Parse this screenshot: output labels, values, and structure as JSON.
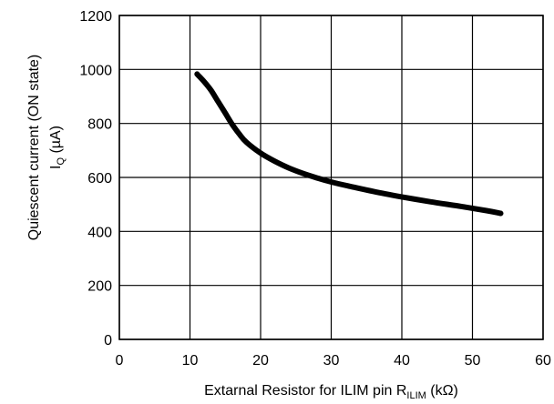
{
  "chart_data": {
    "type": "line",
    "title": "",
    "xlabel": {
      "main": "Extarnal Resistor for ILIM pin R",
      "sub": "ILIM",
      "unit": " (kΩ)"
    },
    "ylabel": {
      "line1": "Quiescent current (ON state)",
      "line2_main": "I",
      "line2_sub": "Q",
      "line2_unit": " (µA)"
    },
    "xlim": [
      0,
      60
    ],
    "ylim": [
      0,
      1200
    ],
    "x_ticks": [
      0,
      10,
      20,
      30,
      40,
      50,
      60
    ],
    "y_ticks": [
      0,
      200,
      400,
      600,
      800,
      1000,
      1200
    ],
    "grid": true,
    "legend": "none",
    "series": [
      {
        "color": "#000000",
        "x": [
          11,
          12,
          13,
          14,
          15,
          16,
          17,
          18,
          20,
          22,
          24,
          26,
          28,
          30,
          33,
          36,
          40,
          44,
          48,
          52,
          54
        ],
        "y": [
          983,
          955,
          922,
          880,
          838,
          796,
          760,
          730,
          690,
          660,
          635,
          615,
          598,
          583,
          565,
          548,
          528,
          510,
          494,
          477,
          467
        ]
      }
    ]
  }
}
